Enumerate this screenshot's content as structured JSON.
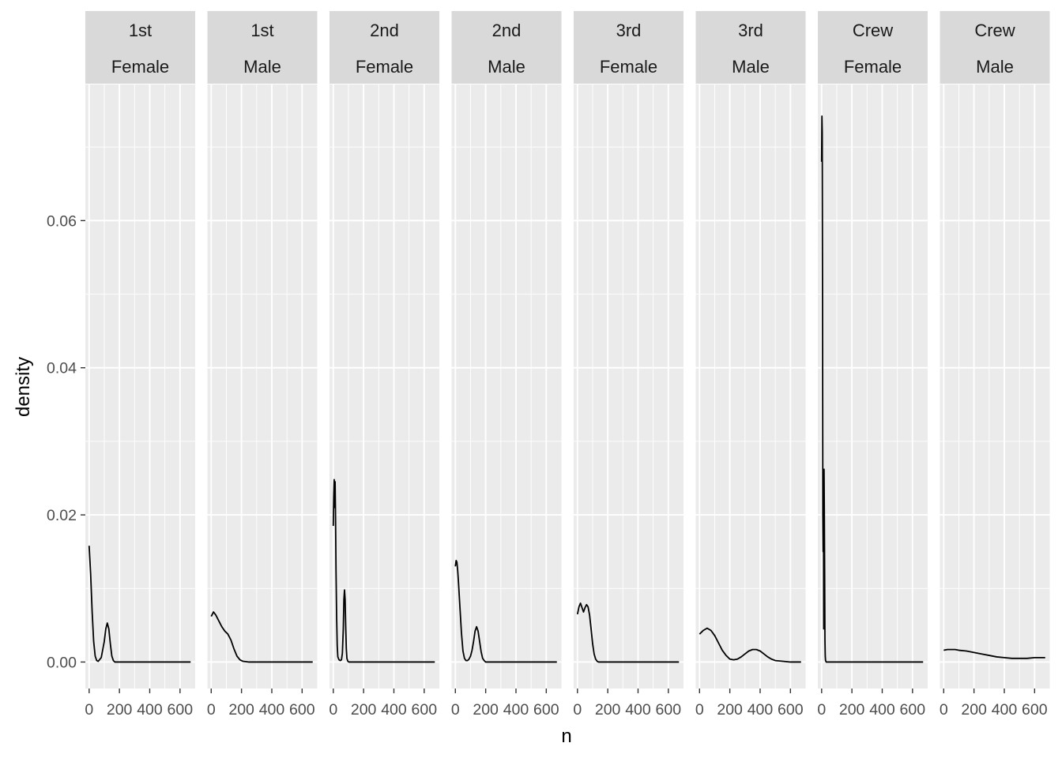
{
  "chart_data": {
    "type": "line",
    "xlabel": "n",
    "ylabel": "density",
    "xlim": [
      -25,
      700
    ],
    "ylim": [
      -0.0036,
      0.0785
    ],
    "x_ticks": [
      0,
      200,
      400,
      600
    ],
    "x_tick_labels": [
      "0",
      "200",
      "400",
      "600"
    ],
    "y_ticks": [
      0.0,
      0.02,
      0.04,
      0.06
    ],
    "y_tick_labels": [
      "0.00",
      "0.02",
      "0.04",
      "0.06"
    ],
    "grid": true,
    "line_color": "#000000",
    "panel_bg": "#ebebeb",
    "strip_bg": "#d9d9d9",
    "panels": [
      {
        "strip": [
          "1st",
          "Female"
        ],
        "series": {
          "x": [
            0,
            10,
            20,
            30,
            40,
            50,
            60,
            80,
            100,
            110,
            120,
            130,
            140,
            150,
            160,
            170,
            180,
            200,
            300,
            400,
            500,
            600,
            670
          ],
          "y": [
            0.0158,
            0.012,
            0.0068,
            0.0028,
            0.0008,
            0.0002,
            0.0001,
            0.0006,
            0.0028,
            0.0045,
            0.0053,
            0.0045,
            0.0025,
            0.0008,
            0.0002,
            0.0,
            0.0,
            0.0,
            0.0,
            0.0,
            0.0,
            0.0,
            0.0
          ]
        }
      },
      {
        "strip": [
          "1st",
          "Male"
        ],
        "series": {
          "x": [
            0,
            15,
            30,
            50,
            70,
            90,
            110,
            130,
            150,
            170,
            190,
            210,
            250,
            300,
            400,
            500,
            600,
            670
          ],
          "y": [
            0.0062,
            0.0068,
            0.0064,
            0.0056,
            0.0048,
            0.0042,
            0.0038,
            0.003,
            0.0018,
            0.0008,
            0.0003,
            0.0001,
            0.0,
            0.0,
            0.0,
            0.0,
            0.0,
            0.0
          ]
        }
      },
      {
        "strip": [
          "2nd",
          "Female"
        ],
        "series": {
          "x": [
            0,
            3,
            6,
            9,
            12,
            15,
            18,
            22,
            26,
            30,
            38,
            46,
            54,
            60,
            66,
            70,
            74,
            78,
            82,
            86,
            90,
            96,
            104,
            120,
            200,
            400,
            600,
            670
          ],
          "y": [
            0.0185,
            0.0225,
            0.0248,
            0.021,
            0.0245,
            0.0195,
            0.0125,
            0.0062,
            0.0022,
            0.0007,
            0.0003,
            0.0002,
            0.0003,
            0.0012,
            0.0045,
            0.0085,
            0.0098,
            0.0085,
            0.0048,
            0.0018,
            0.0005,
            0.0001,
            0.0,
            0.0,
            0.0,
            0.0,
            0.0,
            0.0
          ]
        }
      },
      {
        "strip": [
          "2nd",
          "Male"
        ],
        "series": {
          "x": [
            0,
            5,
            10,
            15,
            20,
            30,
            40,
            50,
            60,
            70,
            80,
            90,
            100,
            110,
            120,
            130,
            140,
            150,
            160,
            170,
            180,
            190,
            200,
            250,
            300,
            400,
            500,
            600,
            670
          ],
          "y": [
            0.013,
            0.0138,
            0.0136,
            0.0125,
            0.011,
            0.0075,
            0.004,
            0.0015,
            0.0005,
            0.0002,
            0.0002,
            0.0004,
            0.0008,
            0.0016,
            0.0028,
            0.0042,
            0.0048,
            0.0042,
            0.0028,
            0.0014,
            0.0005,
            0.0002,
            0.0,
            0.0,
            0.0,
            0.0,
            0.0,
            0.0,
            0.0
          ]
        }
      },
      {
        "strip": [
          "3rd",
          "Female"
        ],
        "series": {
          "x": [
            0,
            10,
            20,
            30,
            40,
            50,
            60,
            70,
            80,
            90,
            100,
            110,
            120,
            130,
            140,
            150,
            170,
            200,
            300,
            400,
            500,
            600,
            670
          ],
          "y": [
            0.0065,
            0.0075,
            0.008,
            0.0074,
            0.0068,
            0.0074,
            0.0078,
            0.0075,
            0.0064,
            0.0045,
            0.0025,
            0.0011,
            0.0004,
            0.0001,
            0.0,
            0.0,
            0.0,
            0.0,
            0.0,
            0.0,
            0.0,
            0.0,
            0.0
          ]
        }
      },
      {
        "strip": [
          "3rd",
          "Male"
        ],
        "series": {
          "x": [
            0,
            25,
            50,
            75,
            100,
            125,
            150,
            175,
            200,
            225,
            250,
            275,
            300,
            325,
            350,
            375,
            400,
            425,
            450,
            475,
            500,
            550,
            600,
            650,
            670
          ],
          "y": [
            0.0038,
            0.0043,
            0.0046,
            0.0043,
            0.0036,
            0.0026,
            0.0016,
            0.0009,
            0.0004,
            0.0003,
            0.0004,
            0.0007,
            0.0011,
            0.0015,
            0.0017,
            0.0017,
            0.0015,
            0.0011,
            0.0007,
            0.0004,
            0.0002,
            0.0001,
            0.0,
            0.0,
            0.0
          ]
        }
      },
      {
        "strip": [
          "Crew",
          "Female"
        ],
        "series": {
          "x": [
            0,
            2,
            4,
            6,
            8,
            10,
            12,
            14,
            16,
            18,
            20,
            22,
            24,
            26,
            30,
            40,
            60,
            100,
            200,
            400,
            600,
            670
          ],
          "y": [
            0.068,
            0.0742,
            0.072,
            0.05,
            0.02,
            0.015,
            0.025,
            0.0045,
            0.0262,
            0.02,
            0.012,
            0.003,
            0.0008,
            0.0002,
            0.0,
            0.0,
            0.0,
            0.0,
            0.0,
            0.0,
            0.0,
            0.0
          ]
        }
      },
      {
        "strip": [
          "Crew",
          "Male"
        ],
        "series": {
          "x": [
            0,
            25,
            50,
            75,
            100,
            150,
            200,
            250,
            300,
            350,
            400,
            450,
            500,
            550,
            600,
            650,
            670
          ],
          "y": [
            0.0016,
            0.0017,
            0.0017,
            0.0017,
            0.0016,
            0.0015,
            0.0013,
            0.0011,
            0.0009,
            0.0007,
            0.0006,
            0.0005,
            0.0005,
            0.0005,
            0.0006,
            0.0006,
            0.0006
          ]
        }
      }
    ]
  }
}
